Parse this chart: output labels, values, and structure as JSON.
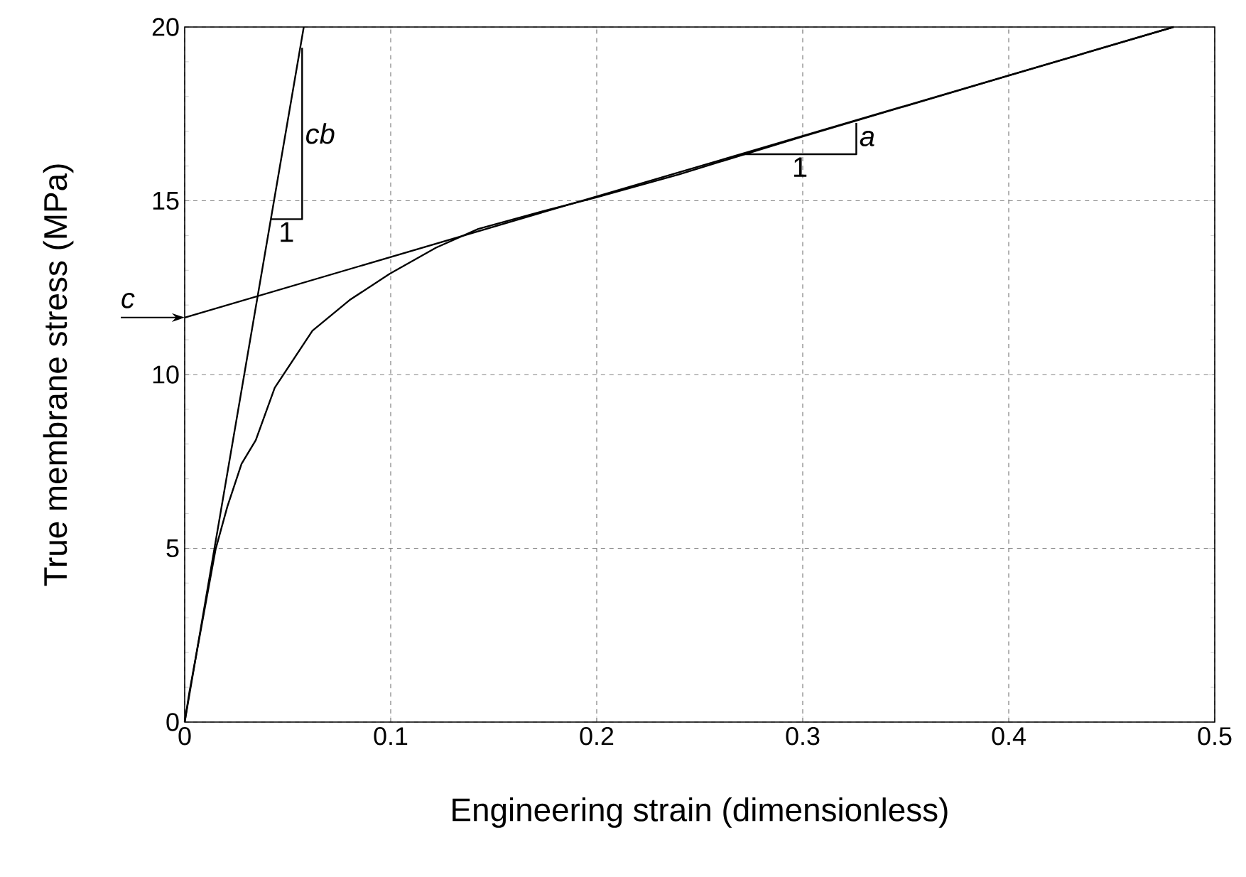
{
  "chart_data": {
    "type": "line",
    "xlabel": "Engineering strain (dimensionless)",
    "ylabel": "True membrane stress (MPa)",
    "xlim": [
      0,
      0.5
    ],
    "ylim": [
      0,
      20
    ],
    "xticks": [
      0,
      0.1,
      0.2,
      0.3,
      0.4,
      0.5
    ],
    "yticks": [
      0,
      5,
      10,
      15,
      20
    ],
    "grid": true,
    "marker": "none",
    "line_style": "solid",
    "series": [
      {
        "color": "#000000",
        "x": [
          0,
          0.0023,
          0.015,
          0.0207,
          0.0276,
          0.0345,
          0.0437,
          0.062,
          0.08,
          0.0995,
          0.122,
          0.1425,
          0.172,
          0.2,
          0.24,
          0.3,
          0.4,
          0.48
        ],
        "values": [
          0,
          0.87,
          4.97,
          6.2,
          7.43,
          8.11,
          9.62,
          11.26,
          12.14,
          12.9,
          13.65,
          14.19,
          14.67,
          15.1,
          15.76,
          16.85,
          18.6,
          20
        ]
      },
      {
        "color": "#000000",
        "x": [
          0,
          0.48
        ],
        "values": [
          11.64,
          20
        ]
      },
      {
        "color": "#000000",
        "x": [
          0,
          0.0578
        ],
        "values": [
          0,
          20
        ]
      },
      {
        "color": "#000000",
        "x": [
          0.0418,
          0.057,
          0.057
        ],
        "values": [
          14.47,
          14.47,
          19.4
        ]
      },
      {
        "color": "#000000",
        "x": [
          0.2713,
          0.326,
          0.326
        ],
        "values": [
          16.34,
          16.34,
          17.24
        ]
      }
    ],
    "annotations": [
      "*cb*",
      "1",
      "*a*",
      "1",
      {
        "text": "*c*",
        "x": 0,
        "y": 11.64
      }
    ]
  }
}
